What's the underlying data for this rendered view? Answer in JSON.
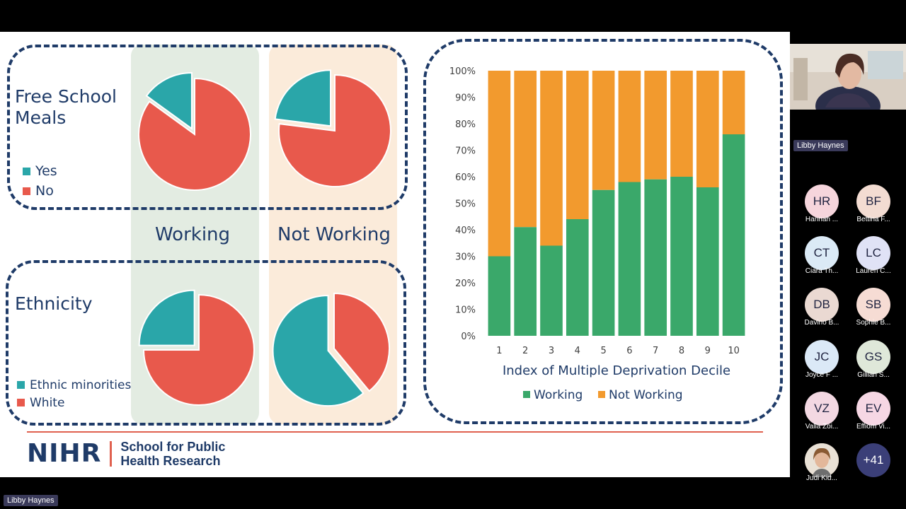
{
  "speaker": {
    "name": "Libby Haynes"
  },
  "slide": {
    "columns": {
      "working": "Working",
      "not_working": "Not Working"
    },
    "fsm": {
      "title_line1": "Free School",
      "title_line2": "Meals",
      "legend": [
        "Yes",
        "No"
      ]
    },
    "ethnicity": {
      "title": "Ethnicity",
      "legend": [
        "Ethnic minorities",
        "White"
      ]
    },
    "footer": {
      "logo": "NIHR",
      "school_line1": "School for Public",
      "school_line2": "Health Research"
    }
  },
  "colors": {
    "navy": "#1f3b68",
    "teal": "#2aa6a9",
    "red": "#e8594c",
    "green": "#3aa86a",
    "orange": "#f29a2e",
    "working_bg": "#e3ece2",
    "notworking_bg": "#fbebda"
  },
  "chart_data": [
    {
      "type": "pie",
      "series_name": "Free School Meals - Working",
      "labels": [
        "Yes",
        "No"
      ],
      "values": [
        15,
        85
      ]
    },
    {
      "type": "pie",
      "series_name": "Free School Meals - Not Working",
      "labels": [
        "Yes",
        "No"
      ],
      "values": [
        23,
        77
      ]
    },
    {
      "type": "pie",
      "series_name": "Ethnicity - Working",
      "labels": [
        "Ethnic minorities",
        "White"
      ],
      "values": [
        25,
        75
      ]
    },
    {
      "type": "pie",
      "series_name": "Ethnicity - Not Working",
      "labels": [
        "Ethnic minorities",
        "White"
      ],
      "values": [
        61,
        39
      ]
    },
    {
      "type": "bar",
      "stacked": true,
      "categories": [
        "1",
        "2",
        "3",
        "4",
        "5",
        "6",
        "7",
        "8",
        "9",
        "10"
      ],
      "series": [
        {
          "name": "Working",
          "values": [
            30,
            41,
            34,
            44,
            55,
            58,
            59,
            60,
            56,
            76
          ]
        },
        {
          "name": "Not Working",
          "values": [
            70,
            59,
            66,
            56,
            45,
            42,
            41,
            40,
            44,
            24
          ]
        }
      ],
      "xlabel": "Index of Multiple Deprivation Decile",
      "ylim": [
        0,
        100
      ],
      "yticks": [
        "0%",
        "10%",
        "20%",
        "30%",
        "40%",
        "50%",
        "60%",
        "70%",
        "80%",
        "90%",
        "100%"
      ],
      "legend": [
        "Working",
        "Not Working"
      ],
      "legend_position": "bottom"
    }
  ],
  "participants": [
    {
      "initials": "HR",
      "name": "Hannah ...",
      "color": "#f6d5dc"
    },
    {
      "initials": "BF",
      "name": "Bettina F...",
      "color": "#f3dcd2"
    },
    {
      "initials": "CT",
      "name": "Ciara Th...",
      "color": "#dbeaf6"
    },
    {
      "initials": "LC",
      "name": "Lauren C...",
      "color": "#e0e2f6"
    },
    {
      "initials": "DB",
      "name": "Davino B...",
      "color": "#ead9d2"
    },
    {
      "initials": "SB",
      "name": "Sophie B...",
      "color": "#f6dcd4"
    },
    {
      "initials": "JC",
      "name": "Joyce F ...",
      "color": "#dbe9f7"
    },
    {
      "initials": "GS",
      "name": "Gillian S...",
      "color": "#dfe8d9"
    },
    {
      "initials": "VZ",
      "name": "Valla Zoi...",
      "color": "#f3d8e2"
    },
    {
      "initials": "EV",
      "name": "Effiom Vi...",
      "color": "#f6d7e4"
    },
    {
      "initials": "",
      "name": "Judi Kid...",
      "color": "#c9a27a"
    },
    {
      "initials": "+41",
      "name": "",
      "color": "#3b3f78"
    }
  ]
}
